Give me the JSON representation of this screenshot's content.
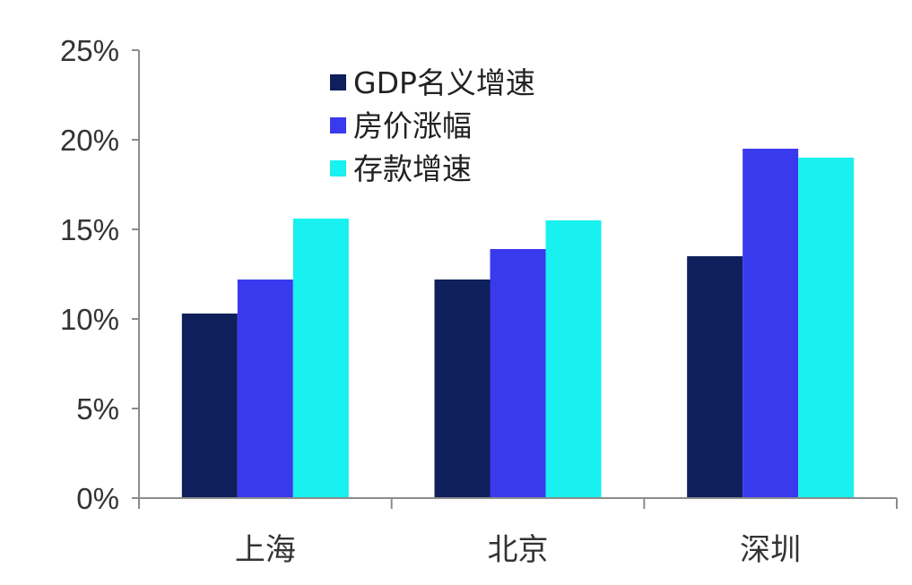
{
  "chart_data": {
    "type": "bar",
    "categories": [
      "上海",
      "北京",
      "深圳"
    ],
    "series": [
      {
        "name": "GDP名义增速",
        "values": [
          10.3,
          12.2,
          13.5
        ],
        "color": "#0e1f5b"
      },
      {
        "name": "房价涨幅",
        "values": [
          12.2,
          13.9,
          19.5
        ],
        "color": "#3939ee"
      },
      {
        "name": "存款增速",
        "values": [
          15.6,
          15.5,
          19.0
        ],
        "color": "#19f0f0"
      }
    ],
    "ylim": [
      0,
      25
    ],
    "y_ticks": [
      "0%",
      "5%",
      "10%",
      "15%",
      "20%",
      "25%"
    ],
    "y_tick_values": [
      0,
      5,
      10,
      15,
      20,
      25
    ],
    "grid": false,
    "legend_position": "top-center"
  }
}
